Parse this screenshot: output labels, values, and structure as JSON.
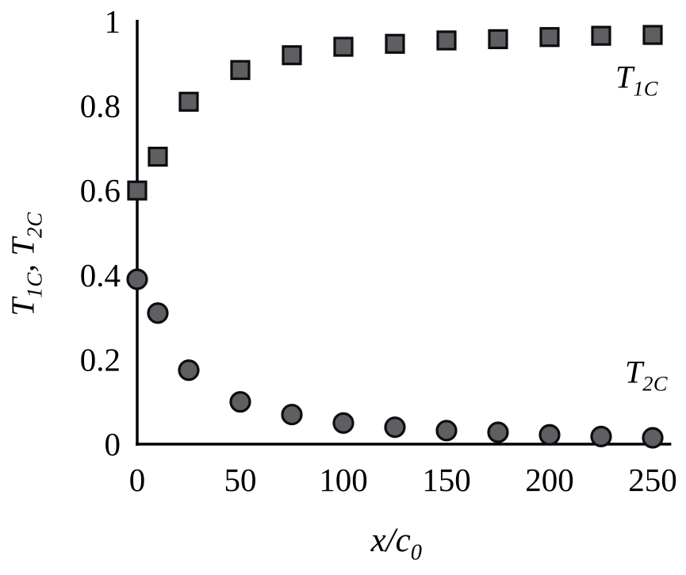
{
  "chart_data": {
    "type": "scatter",
    "title": "",
    "x": [
      0,
      10,
      25,
      50,
      75,
      100,
      125,
      150,
      175,
      200,
      225,
      250
    ],
    "series": [
      {
        "name": "T_1C",
        "marker": "square",
        "values": [
          0.6,
          0.68,
          0.81,
          0.885,
          0.92,
          0.94,
          0.947,
          0.955,
          0.958,
          0.963,
          0.966,
          0.968
        ]
      },
      {
        "name": "T_2C",
        "marker": "circle",
        "values": [
          0.39,
          0.31,
          0.175,
          0.1,
          0.07,
          0.05,
          0.04,
          0.032,
          0.028,
          0.022,
          0.018,
          0.015
        ]
      }
    ],
    "xlabel": "x/c_0",
    "ylabel": "T_1C, T_2C",
    "x_ticks": [
      0,
      50,
      100,
      150,
      200,
      250
    ],
    "x_tick_labels": [
      "0",
      "50",
      "100",
      "150",
      "200",
      "250"
    ],
    "y_ticks": [
      0,
      0.2,
      0.4,
      0.6,
      0.8,
      1
    ],
    "y_tick_labels": [
      "0",
      "0.2",
      "0.4",
      "0.6",
      "0.8",
      "1"
    ],
    "xlim": [
      0,
      259
    ],
    "ylim": [
      0,
      1
    ],
    "grid": false,
    "legend_position": "inline text annotations beside each series"
  },
  "labels": {
    "y_title": {
      "t1_main": "T",
      "t1_sub": "1C",
      "separator": ", ",
      "t2_main": "T",
      "t2_sub": "2C"
    },
    "x_title": {
      "main": "x/c",
      "sub": "0"
    },
    "series_t1c": {
      "main": "T",
      "sub": "1C"
    },
    "series_t2c": {
      "main": "T",
      "sub": "2C"
    }
  },
  "style": {
    "background": "#ffffff",
    "axis_color": "#000000",
    "marker_fill": "#5d5f63",
    "marker_stroke": "#0d0d0d",
    "text_color": "#000000"
  }
}
